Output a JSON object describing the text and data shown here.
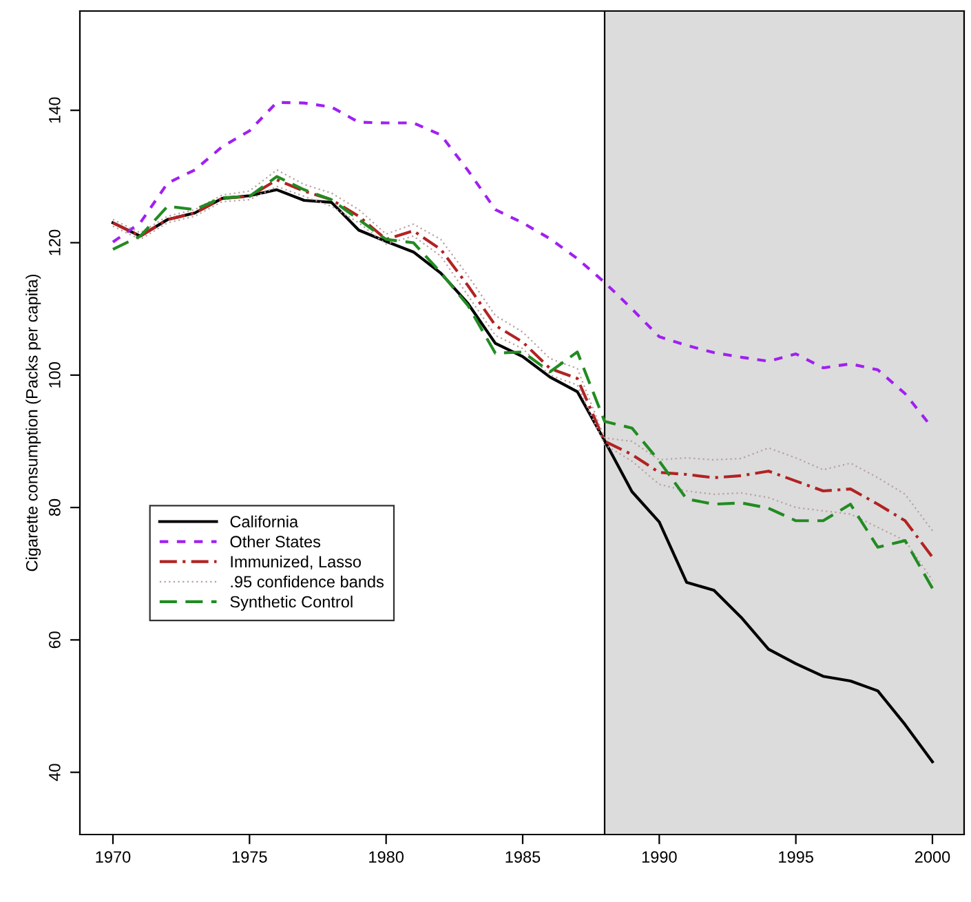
{
  "chart_data": {
    "type": "line",
    "ylabel": "Cigarette consumption (Packs per capita)",
    "x": [
      1970,
      1971,
      1972,
      1973,
      1974,
      1975,
      1976,
      1977,
      1978,
      1979,
      1980,
      1981,
      1982,
      1983,
      1984,
      1985,
      1986,
      1987,
      1988,
      1989,
      1990,
      1991,
      1992,
      1993,
      1994,
      1995,
      1996,
      1997,
      1998,
      1999,
      2000
    ],
    "series": [
      {
        "name": "California",
        "color": "#000000",
        "line_style": "solid",
        "values": [
          123,
          121,
          123.5,
          124.5,
          126.7,
          127.1,
          128,
          126.4,
          126.1,
          121.9,
          120.2,
          118.6,
          115.4,
          110.8,
          104.8,
          102.8,
          99.7,
          97.5,
          90.1,
          82.4,
          77.8,
          68.7,
          67.5,
          63.4,
          58.6,
          56.4,
          54.5,
          53.8,
          52.3,
          47.2,
          41.6
        ]
      },
      {
        "name": "Other States",
        "color": "#a020f0",
        "line_style": "dashed",
        "values": [
          120.1,
          123,
          129,
          131,
          134.5,
          136.9,
          141.2,
          141.1,
          140.5,
          138.2,
          138.1,
          138.1,
          136.3,
          130.9,
          125,
          123,
          120.6,
          117.6,
          114,
          110,
          105.8,
          104.5,
          103.4,
          102.7,
          102.1,
          103.2,
          101.1,
          101.7,
          100.8,
          97.2,
          92
        ]
      },
      {
        "name": "Immunized, Lasso",
        "color": "#b22222",
        "line_style": "dashdot",
        "values": [
          123,
          121,
          123.5,
          124.5,
          126.7,
          127,
          129.5,
          127.8,
          126.5,
          124,
          120.5,
          121.8,
          119,
          113.5,
          107.5,
          105,
          101,
          99.5,
          90,
          88,
          85.3,
          85,
          84.5,
          84.8,
          85.5,
          84,
          82.5,
          82.8,
          80.5,
          78,
          72.5
        ]
      },
      {
        "name": ".95 confidence bands",
        "color": "#b8a0a0",
        "line_style": "dotted",
        "values": [
          123.5,
          121.5,
          124,
          125,
          127.2,
          127.8,
          131,
          128.8,
          127.5,
          125,
          121.3,
          122.8,
          120.5,
          115,
          109,
          106.5,
          102.5,
          101,
          90.5,
          90,
          87.2,
          87.5,
          87.2,
          87.4,
          89,
          87.5,
          85.7,
          86.7,
          84.5,
          82,
          76.5
        ]
      },
      {
        "color": "#b8a0a0",
        "line_style": "dotted",
        "values": [
          122.5,
          120.5,
          123,
          124,
          126.2,
          126.5,
          128.5,
          127,
          125.5,
          123,
          119.8,
          121,
          118,
          112,
          106,
          104,
          100,
          98.5,
          89.5,
          87,
          83.5,
          82.5,
          82,
          82.2,
          81.5,
          80,
          79.5,
          79,
          77,
          75,
          69
        ]
      },
      {
        "name": "Synthetic Control",
        "color": "#228b22",
        "line_style": "longdash",
        "values": [
          119,
          121,
          125.5,
          125,
          126.8,
          127,
          130,
          128,
          126.5,
          123.5,
          120.5,
          120,
          115.5,
          110.5,
          103.3,
          103.5,
          100.5,
          103.5,
          93,
          92,
          87,
          81.3,
          80.5,
          80.7,
          79.9,
          78,
          78,
          80.5,
          74,
          75,
          67.8
        ]
      }
    ],
    "xlim": [
      1968.79,
      2001.16
    ],
    "ylim": [
      30.6,
      155
    ],
    "xticks": [
      1970,
      1975,
      1980,
      1985,
      1990,
      1995,
      2000
    ],
    "yticks": [
      40,
      60,
      80,
      100,
      120,
      140
    ],
    "bands": [
      {
        "axis": "x",
        "from": 1988,
        "to": 2001.16,
        "color": "#dcdcdc"
      }
    ],
    "ref_lines": [
      {
        "axis": "x",
        "value": 1988,
        "color": "#000000"
      }
    ],
    "grid": false,
    "legend": "bottom left"
  }
}
